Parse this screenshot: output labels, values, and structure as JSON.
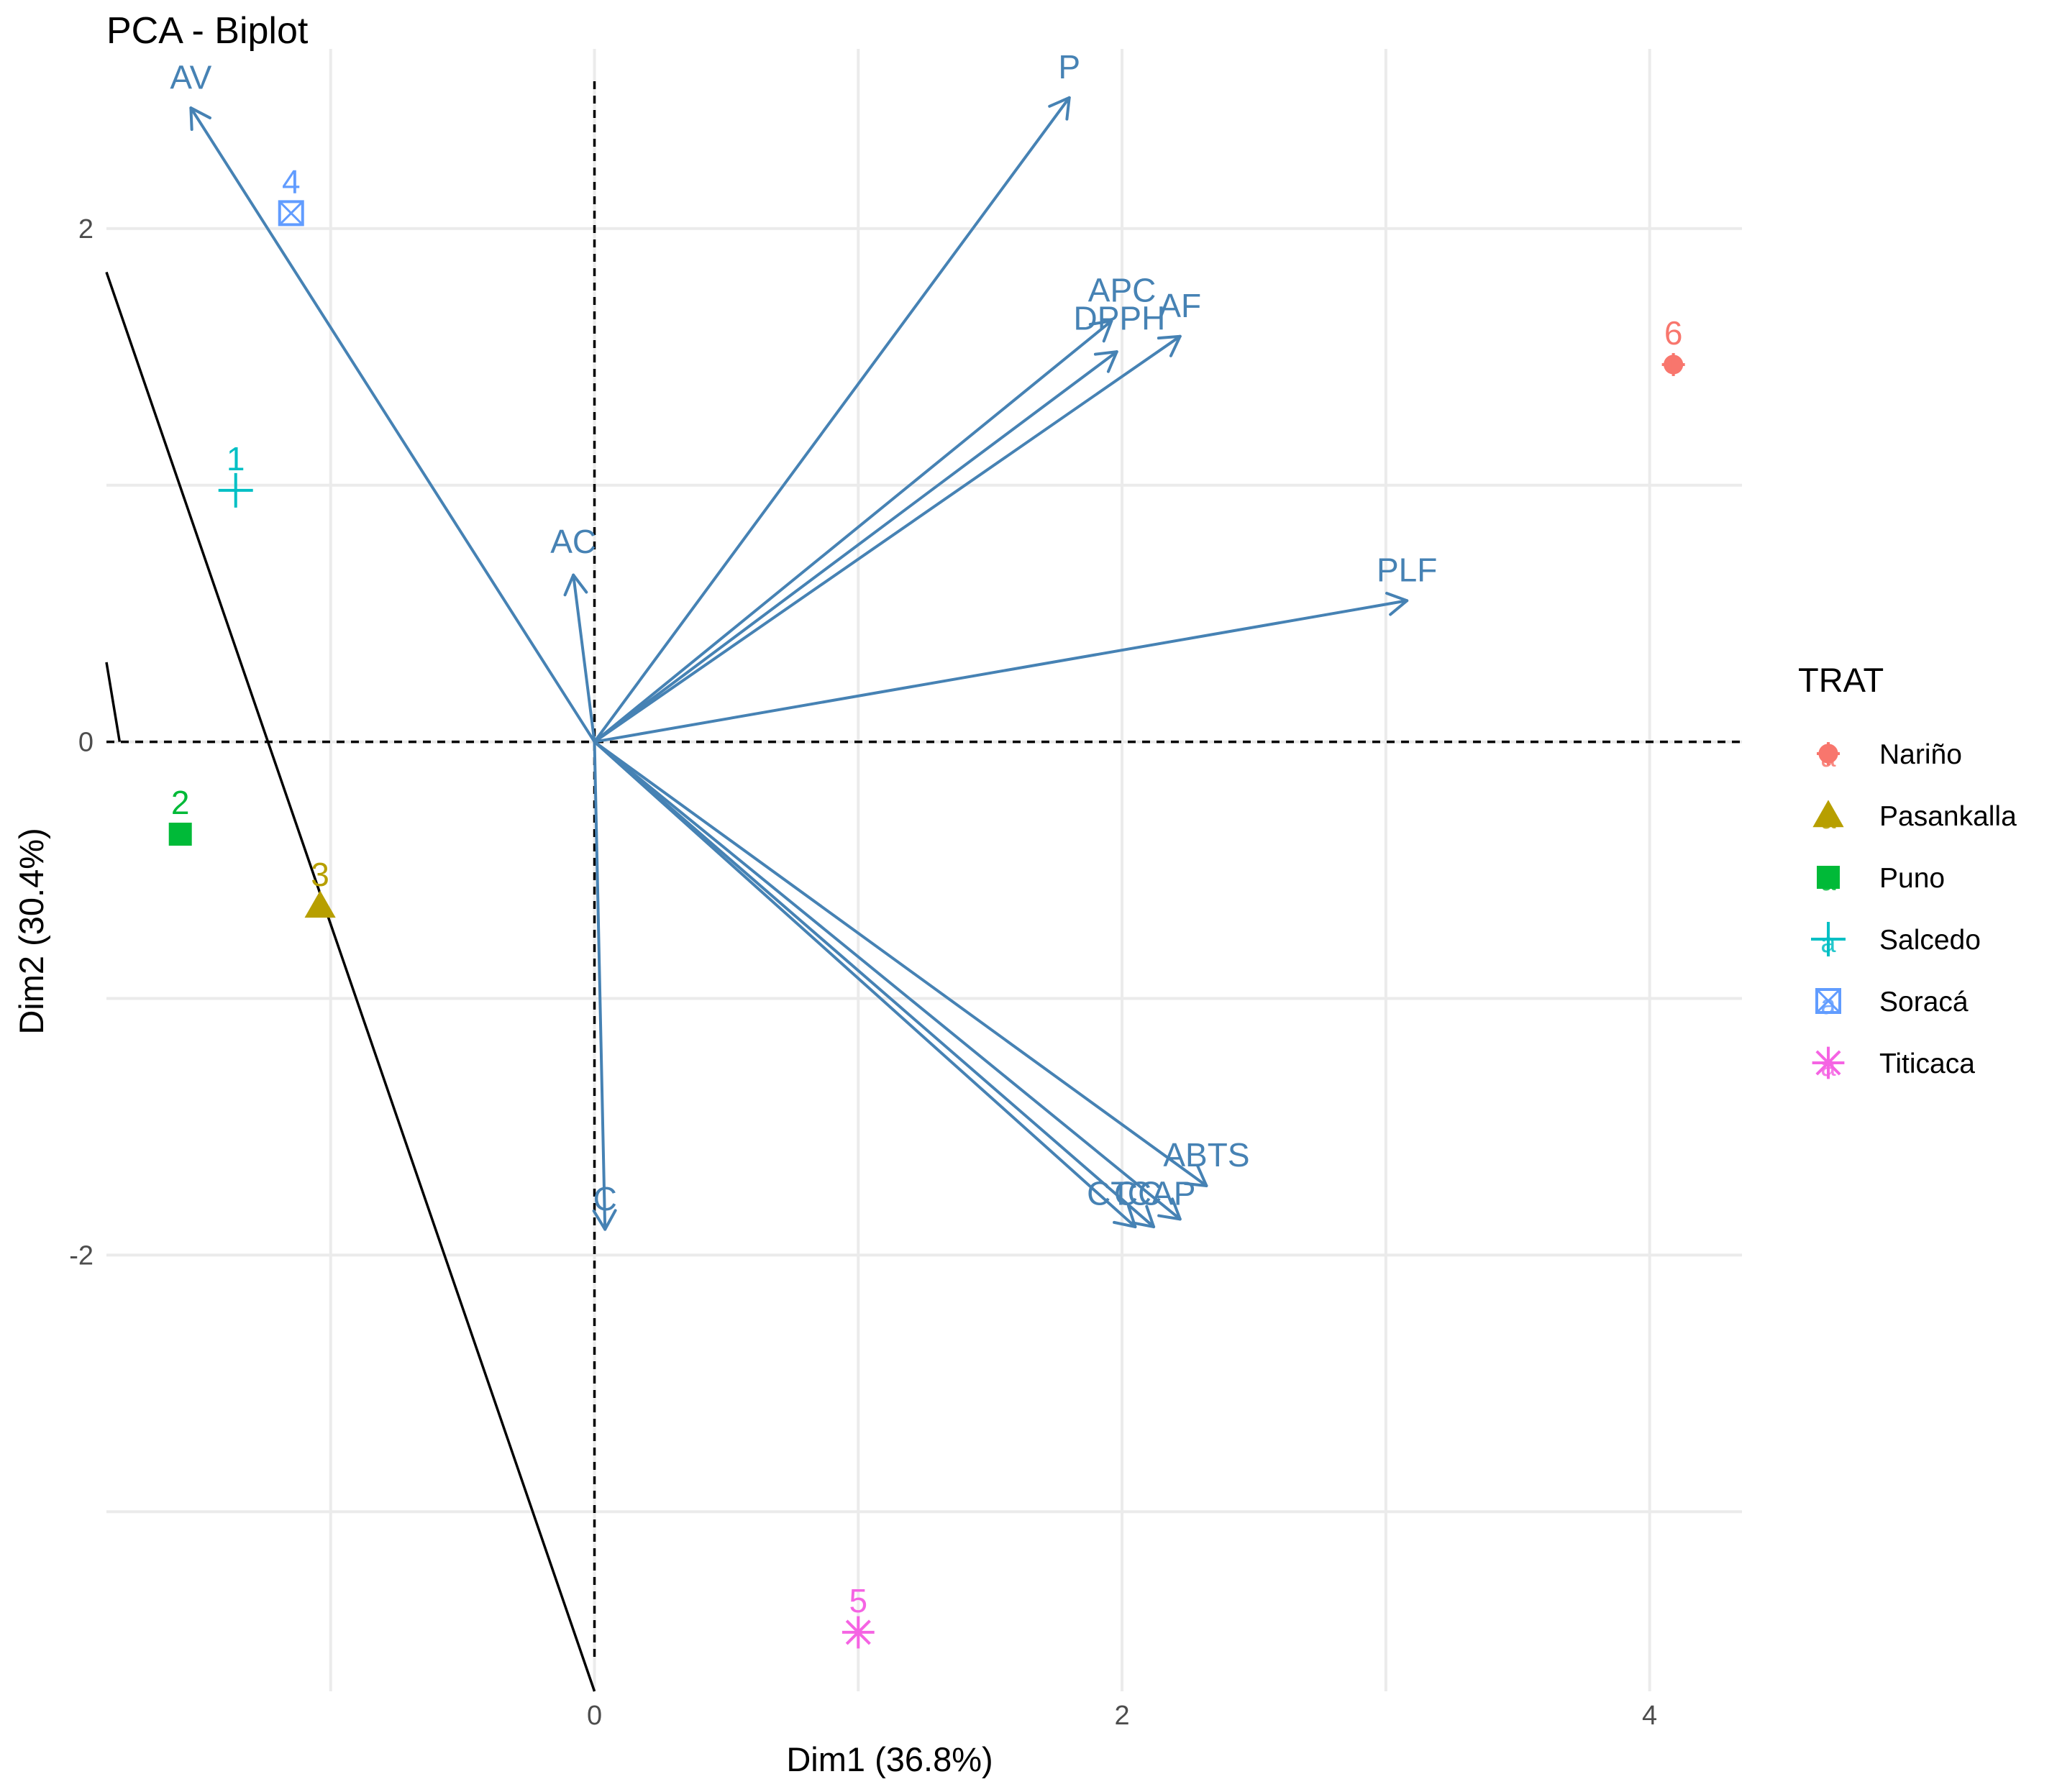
{
  "chart_data": {
    "type": "scatter",
    "subtype": "pca-biplot",
    "title": "PCA - Biplot",
    "xlabel": "Dim1 (36.8%)",
    "ylabel": "Dim2 (30.4%)",
    "xlim": [
      -1.85,
      4.35
    ],
    "ylim": [
      -3.7,
      2.7
    ],
    "x_ticks": [
      0,
      2,
      4
    ],
    "x_tick_labels": [
      "0",
      "2",
      "4"
    ],
    "y_ticks": [
      -2,
      0,
      2
    ],
    "y_tick_labels": [
      "-2",
      "0",
      "2"
    ],
    "minor_x": [
      -1,
      1,
      3
    ],
    "minor_y": [
      -3,
      -1,
      1
    ],
    "grid": true,
    "reference_lines": {
      "x": 0,
      "y": 0,
      "style": "dashed"
    },
    "arrow_color": "#4682b4",
    "variables": [
      {
        "name": "AV",
        "x": -1.53,
        "y": 2.47,
        "label": "AV",
        "lx": -1.53,
        "ly": 2.59
      },
      {
        "name": "P",
        "x": 1.8,
        "y": 2.51,
        "label": "P",
        "lx": 1.8,
        "ly": 2.63
      },
      {
        "name": "APC",
        "x": 1.96,
        "y": 1.64,
        "label": "APC",
        "lx": 2.0,
        "ly": 1.76
      },
      {
        "name": "DPPH",
        "x": 1.98,
        "y": 1.52,
        "label": "DPPH",
        "lx": 1.99,
        "ly": 1.65
      },
      {
        "name": "AF",
        "x": 2.22,
        "y": 1.58,
        "label": "AF",
        "lx": 2.22,
        "ly": 1.7
      },
      {
        "name": "AC",
        "x": -0.08,
        "y": 0.65,
        "label": "AC",
        "lx": -0.08,
        "ly": 0.78
      },
      {
        "name": "PLF",
        "x": 3.08,
        "y": 0.55,
        "label": "PLF",
        "lx": 3.08,
        "ly": 0.67
      },
      {
        "name": "C",
        "x": 0.04,
        "y": -1.9,
        "label": "C",
        "lx": 0.04,
        "ly": -1.78
      },
      {
        "name": "ABTS",
        "x": 2.32,
        "y": -1.73,
        "label": "ABTS",
        "lx": 2.32,
        "ly": -1.61
      },
      {
        "name": "CT",
        "x": 2.05,
        "y": -1.89,
        "label": "CT",
        "lx": 1.95,
        "ly": -1.76
      },
      {
        "name": "CC",
        "x": 2.12,
        "y": -1.89,
        "label": "CC",
        "lx": 2.06,
        "ly": -1.76
      },
      {
        "name": "CAP",
        "x": 2.22,
        "y": -1.86,
        "label": "CAP",
        "lx": 2.15,
        "ly": -1.76
      }
    ],
    "individuals": [
      {
        "label": "1",
        "group": "Salcedo",
        "x": -1.36,
        "y": 0.98
      },
      {
        "label": "2",
        "group": "Puno",
        "x": -1.57,
        "y": -0.36
      },
      {
        "label": "3",
        "group": "Pasankalla",
        "x": -1.04,
        "y": -0.64
      },
      {
        "label": "4",
        "group": "Soracá",
        "x": -1.15,
        "y": 2.06
      },
      {
        "label": "5",
        "group": "Titicaca",
        "x": 1.0,
        "y": -3.47
      },
      {
        "label": "6",
        "group": "Nariño",
        "x": 4.09,
        "y": 1.47
      }
    ],
    "extra_lines": [
      {
        "description": "solid black line",
        "points": [
          [
            -1.85,
            1.83
          ],
          [
            0.0,
            -3.7
          ]
        ]
      },
      {
        "description": "short solid black segment",
        "points": [
          [
            -1.85,
            0.31
          ],
          [
            -1.8,
            0.0
          ]
        ]
      }
    ],
    "legend": {
      "title": "TRAT",
      "placement": "right",
      "items": [
        {
          "label": "Nariño",
          "color": "#f8766d",
          "shape": "circle-cross"
        },
        {
          "label": "Pasankalla",
          "color": "#b79f00",
          "shape": "triangle"
        },
        {
          "label": "Puno",
          "color": "#00ba38",
          "shape": "square"
        },
        {
          "label": "Salcedo",
          "color": "#00bfc4",
          "shape": "plus"
        },
        {
          "label": "Soracá",
          "color": "#619cff",
          "shape": "square-cross"
        },
        {
          "label": "Titicaca",
          "color": "#f564e3",
          "shape": "asterisk"
        }
      ],
      "key_letter": "a"
    }
  }
}
